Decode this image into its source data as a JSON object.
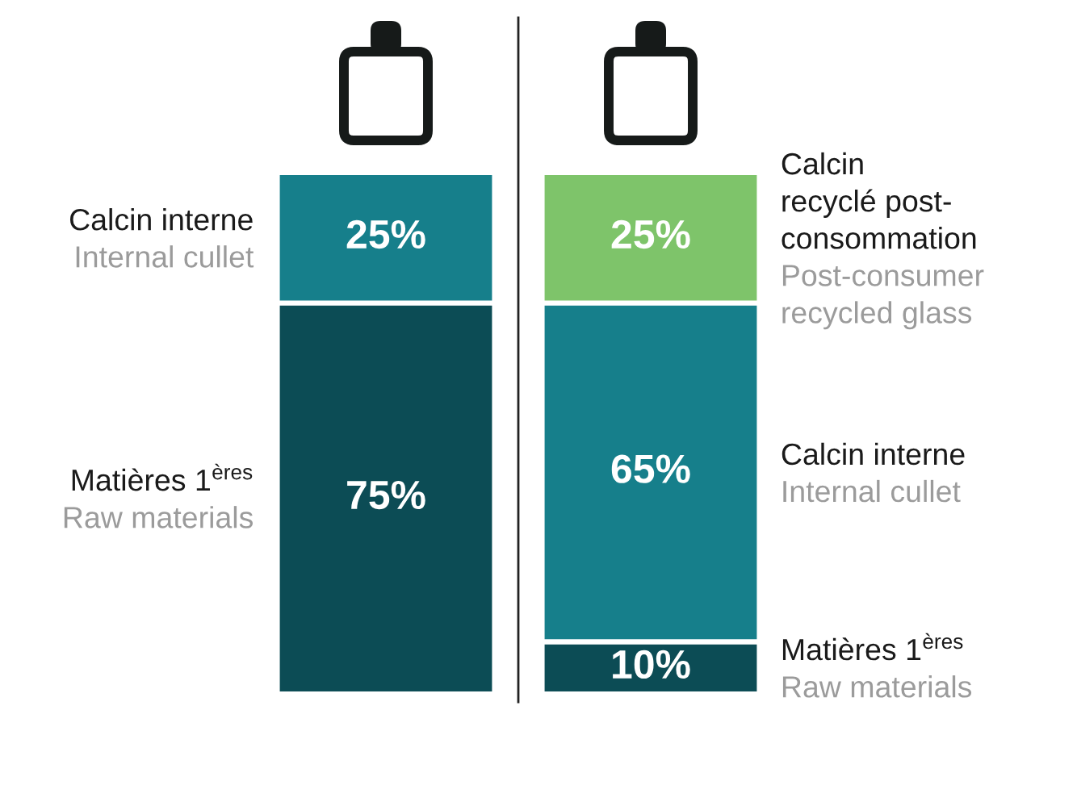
{
  "chart_data": {
    "type": "bar",
    "stacked": true,
    "categories": [
      null,
      null
    ],
    "series": [
      {
        "name": "Matières 1$^{ères}$\n\nRaw materials",
        "color": "#0c4c55",
        "values": [
          75,
          10
        ],
        "value_labels": [
          "75%",
          "10%"
        ]
      },
      {
        "name": "Calcin interne\n\nInternal cullet",
        "color": "#167f8b",
        "values": [
          25,
          65
        ],
        "value_labels": [
          "25%",
          "65%"
        ]
      },
      {
        "name": "Calcin\nrecyclé post-\nconsommation\n\nPost-consumer\nrecycled glass",
        "color": "#7ec46a",
        "values": [
          null,
          25
        ],
        "value_labels": [
          null,
          "25%"
        ]
      }
    ]
  }
}
